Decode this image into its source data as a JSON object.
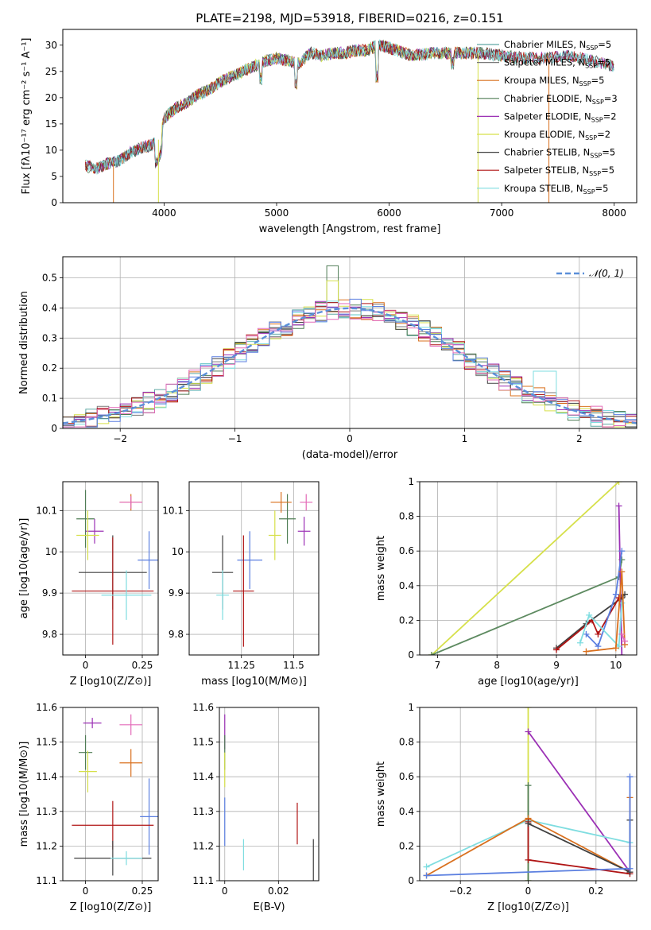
{
  "figure": {
    "title": "PLATE=2198, MJD=53918, FIBERID=0216, z=0.151"
  },
  "series_styles": [
    {
      "name": "Chabrier MILES",
      "nssp": "5",
      "color": "#5fa8a4"
    },
    {
      "name": "Salpeter MILES",
      "nssp": "5",
      "color": "#7a7a7a"
    },
    {
      "name": "Kroupa MILES",
      "nssp": "5",
      "color": "#d9701e"
    },
    {
      "name": "Chabrier ELODIE",
      "nssp": "3",
      "color": "#4f7d55"
    },
    {
      "name": "Salpeter ELODIE",
      "nssp": "2",
      "color": "#9b30b5"
    },
    {
      "name": "Kroupa ELODIE",
      "nssp": "2",
      "color": "#d6e04a"
    },
    {
      "name": "Chabrier STELIB",
      "nssp": "5",
      "color": "#404040"
    },
    {
      "name": "Salpeter STELIB",
      "nssp": "5",
      "color": "#b01414"
    },
    {
      "name": "Kroupa STELIB",
      "nssp": "5",
      "color": "#7fdde0"
    }
  ],
  "extra_colors": {
    "blue": "#5b7fe0",
    "pink": "#e36ab8",
    "orange": "#e36a2a",
    "green": "#5d8a60"
  },
  "chart_data": [
    {
      "id": "spectrum",
      "type": "line",
      "title": "PLATE=2198, MJD=53918, FIBERID=0216, z=0.151",
      "xlabel": "wavelength [Angstrom, rest frame]",
      "ylabel": "Flux [fλ10⁻¹⁷ erg cm⁻² s⁻¹ A⁻¹]",
      "xlim": [
        3100,
        8200
      ],
      "ylim": [
        0,
        33
      ],
      "xticks": [
        4000,
        5000,
        6000,
        7000,
        8000
      ],
      "yticks": [
        0,
        5,
        10,
        15,
        20,
        25,
        30
      ],
      "grid": false,
      "legend_position": "top-right",
      "continuum": {
        "x": [
          3300,
          3400,
          3500,
          3600,
          3700,
          3800,
          3900,
          3950,
          4000,
          4100,
          4200,
          4300,
          4400,
          4500,
          4600,
          4700,
          4800,
          4900,
          5000,
          5100,
          5200,
          5300,
          5400,
          5500,
          5600,
          5700,
          5800,
          5900,
          6000,
          6200,
          6400,
          6600,
          6800,
          7000,
          7200,
          7400,
          7600,
          7800,
          8000
        ],
        "y": [
          7,
          6.5,
          7.5,
          8,
          9.5,
          10.5,
          11,
          12,
          16,
          18,
          19,
          20.5,
          21.5,
          23,
          24,
          25,
          26,
          27,
          27.5,
          27,
          26.5,
          28.5,
          28,
          28.5,
          28.5,
          29,
          29,
          30,
          29.5,
          28,
          28.5,
          28.5,
          28.5,
          28,
          27.5,
          27.5,
          28,
          27,
          26
        ]
      },
      "features": [
        {
          "x": 3550,
          "y": 0,
          "series": "Kroupa MILES"
        },
        {
          "x": 3950,
          "y": 0,
          "series": "Kroupa ELODIE"
        },
        {
          "x": 6790,
          "y": 0,
          "series": "Kroupa ELODIE"
        },
        {
          "x": 7420,
          "y": 0,
          "series": "Kroupa MILES"
        }
      ]
    },
    {
      "id": "residuals",
      "type": "histogram",
      "xlabel": "(data-model)/error",
      "ylabel": "Normed distribution",
      "xlim": [
        -2.5,
        2.5
      ],
      "ylim": [
        0,
        0.57
      ],
      "xticks": [
        -2,
        -1,
        0,
        1,
        2
      ],
      "yticks": [
        0,
        0.1,
        0.2,
        0.3,
        0.4,
        0.5
      ],
      "grid": true,
      "legend_position": "top-right",
      "reference": {
        "name": "𝒩(0, 1)",
        "type": "gaussian",
        "mean": 0,
        "sigma": 1,
        "color": "#5b8fd9"
      },
      "bins": {
        "start": -2.5,
        "width": 0.1,
        "count": 50
      },
      "peaks": [
        {
          "x": -0.15,
          "y": 0.54,
          "series": "Chabrier ELODIE"
        },
        {
          "x": -0.15,
          "y": 0.49,
          "series": "Kroupa ELODIE"
        },
        {
          "x": 1.7,
          "y": 0.19,
          "series": "Kroupa STELIB"
        }
      ]
    },
    {
      "id": "age-vs-Z",
      "type": "errorbar",
      "xlabel": "Z [log10(Z/Z⊙)]",
      "ylabel": "age  [log10(age/yr)]",
      "xlim": [
        -0.1,
        0.32
      ],
      "ylim": [
        9.75,
        10.17
      ],
      "xticks": [
        0.0,
        0.25
      ],
      "yticks": [
        9.8,
        9.9,
        10.0,
        10.1
      ],
      "grid": true,
      "points": [
        {
          "series": "Chabrier ELODIE",
          "x": 0.0,
          "y": 10.08,
          "xerr": 0.04,
          "yerr": 0.07
        },
        {
          "series": "Salpeter ELODIE",
          "x": 0.04,
          "y": 10.05,
          "xerr": 0.04,
          "yerr": 0.03
        },
        {
          "series": "Kroupa ELODIE",
          "x": 0.01,
          "y": 10.04,
          "xerr": 0.05,
          "yerr": 0.06
        },
        {
          "series": "Kroupa MILES",
          "x": 0.2,
          "y": 10.12,
          "xerr": 0.05,
          "yerr": 0.02
        },
        {
          "series": "pink",
          "x": 0.2,
          "y": 10.12,
          "xerr": 0.05,
          "yerr": 0.015
        },
        {
          "series": "blue",
          "x": 0.28,
          "y": 9.98,
          "xerr": 0.05,
          "yerr": 0.07
        },
        {
          "series": "Chabrier STELIB",
          "x": 0.12,
          "y": 9.95,
          "xerr": 0.15,
          "yerr": 0.09
        },
        {
          "series": "Salpeter STELIB",
          "x": 0.12,
          "y": 9.905,
          "xerr": 0.18,
          "yerr": 0.13
        },
        {
          "series": "Kroupa STELIB",
          "x": 0.18,
          "y": 9.895,
          "xerr": 0.11,
          "yerr": 0.06
        }
      ]
    },
    {
      "id": "age-vs-mass",
      "type": "errorbar",
      "xlabel": "mass [log10(M/M⊙)]",
      "ylabel": "",
      "xlim": [
        11.0,
        11.62
      ],
      "ylim": [
        9.75,
        10.17
      ],
      "xticks": [
        11.25,
        11.5
      ],
      "yticks": [
        9.8,
        9.9,
        10.0,
        10.1
      ],
      "grid": true,
      "points": [
        {
          "series": "Chabrier ELODIE",
          "x": 11.47,
          "y": 10.08,
          "xerr": 0.04,
          "yerr": 0.06
        },
        {
          "series": "Salpeter ELODIE",
          "x": 11.55,
          "y": 10.05,
          "xerr": 0.03,
          "yerr": 0.035
        },
        {
          "series": "pink",
          "x": 11.56,
          "y": 10.12,
          "xerr": 0.03,
          "yerr": 0.02
        },
        {
          "series": "Kroupa MILES",
          "x": 11.44,
          "y": 10.12,
          "xerr": 0.05,
          "yerr": 0.025
        },
        {
          "series": "Kroupa ELODIE",
          "x": 11.41,
          "y": 10.04,
          "xerr": 0.03,
          "yerr": 0.06
        },
        {
          "series": "blue",
          "x": 11.29,
          "y": 9.98,
          "xerr": 0.06,
          "yerr": 0.07
        },
        {
          "series": "Chabrier STELIB",
          "x": 11.16,
          "y": 9.95,
          "xerr": 0.05,
          "yerr": 0.09
        },
        {
          "series": "Kroupa STELIB",
          "x": 11.16,
          "y": 9.895,
          "xerr": 0.03,
          "yerr": 0.06
        },
        {
          "series": "Salpeter STELIB",
          "x": 11.26,
          "y": 9.905,
          "xerr": 0.05,
          "yerr": 0.135
        }
      ]
    },
    {
      "id": "massweight-vs-age",
      "type": "line",
      "xlabel": "age  [log10(age/yr)]",
      "ylabel": "mass weight",
      "xlim": [
        6.7,
        10.35
      ],
      "ylim": [
        0,
        1
      ],
      "xticks": [
        7,
        8,
        9,
        10
      ],
      "yticks": [
        0.0,
        0.2,
        0.4,
        0.6,
        0.8,
        1.0
      ],
      "grid": true,
      "series": [
        {
          "name": "Kroupa ELODIE",
          "x": [
            6.9,
            10.05
          ],
          "y": [
            0.0,
            1.0
          ]
        },
        {
          "name": "green",
          "x": [
            6.9,
            10.05,
            10.1
          ],
          "y": [
            0.0,
            0.45,
            0.55
          ]
        },
        {
          "name": "Salpeter ELODIE",
          "x": [
            10.05,
            10.1
          ],
          "y": [
            0.86,
            0.0
          ]
        },
        {
          "name": "Chabrier STELIB",
          "x": [
            9.0,
            9.5,
            10.1,
            10.15
          ],
          "y": [
            0.04,
            0.18,
            0.33,
            0.35
          ]
        },
        {
          "name": "Salpeter STELIB",
          "x": [
            9.0,
            9.6,
            9.7,
            10.05
          ],
          "y": [
            0.03,
            0.2,
            0.12,
            0.33
          ]
        },
        {
          "name": "blue",
          "x": [
            9.5,
            9.7,
            10.0,
            10.1
          ],
          "y": [
            0.12,
            0.05,
            0.35,
            0.6
          ]
        },
        {
          "name": "Kroupa STELIB",
          "x": [
            9.4,
            9.55,
            10.05,
            10.1
          ],
          "y": [
            0.07,
            0.23,
            0.05,
            0.3
          ]
        },
        {
          "name": "Kroupa MILES",
          "x": [
            9.5,
            10.0,
            10.1,
            10.15
          ],
          "y": [
            0.02,
            0.04,
            0.48,
            0.06
          ]
        },
        {
          "name": "pink",
          "x": [
            10.1,
            10.15
          ],
          "y": [
            0.12,
            0.08
          ]
        }
      ]
    },
    {
      "id": "mass-vs-Z",
      "type": "errorbar",
      "xlabel": "Z [log10(Z/Z⊙)]",
      "ylabel": "mass [log10(M/M⊙)]",
      "xlim": [
        -0.1,
        0.32
      ],
      "ylim": [
        11.1,
        11.6
      ],
      "xticks": [
        0.0,
        0.25
      ],
      "yticks": [
        11.1,
        11.2,
        11.3,
        11.4,
        11.5,
        11.6
      ],
      "grid": true,
      "points": [
        {
          "series": "Salpeter ELODIE",
          "x": 0.03,
          "y": 11.555,
          "xerr": 0.04,
          "yerr": 0.015
        },
        {
          "series": "pink",
          "x": 0.2,
          "y": 11.55,
          "xerr": 0.05,
          "yerr": 0.03
        },
        {
          "series": "Chabrier ELODIE",
          "x": 0.0,
          "y": 11.47,
          "xerr": 0.03,
          "yerr": 0.05
        },
        {
          "series": "Kroupa MILES",
          "x": 0.2,
          "y": 11.44,
          "xerr": 0.05,
          "yerr": 0.04
        },
        {
          "series": "Kroupa ELODIE",
          "x": 0.01,
          "y": 11.415,
          "xerr": 0.04,
          "yerr": 0.06
        },
        {
          "series": "blue",
          "x": 0.28,
          "y": 11.285,
          "xerr": 0.04,
          "yerr": 0.11
        },
        {
          "series": "Salpeter STELIB",
          "x": 0.12,
          "y": 11.26,
          "xerr": 0.18,
          "yerr": 0.07
        },
        {
          "series": "Chabrier STELIB",
          "x": 0.12,
          "y": 11.165,
          "xerr": 0.17,
          "yerr": 0.05
        },
        {
          "series": "Kroupa STELIB",
          "x": 0.18,
          "y": 11.165,
          "xerr": 0.07,
          "yerr": 0.02
        }
      ]
    },
    {
      "id": "mass-vs-ebv",
      "type": "errorbar",
      "xlabel": "E(B-V)",
      "ylabel": "",
      "xlim": [
        -0.002,
        0.035
      ],
      "ylim": [
        11.1,
        11.6
      ],
      "xticks": [
        0.0,
        0.02
      ],
      "yticks": [
        11.1,
        11.2,
        11.3,
        11.4,
        11.5,
        11.6
      ],
      "grid": true,
      "points": [
        {
          "series": "Salpeter ELODIE",
          "x": 0.0,
          "y": 11.53,
          "xerr": 0.0,
          "yerr": 0.05
        },
        {
          "series": "Chabrier ELODIE",
          "x": 0.0,
          "y": 11.47,
          "xerr": 0.0,
          "yerr": 0.05
        },
        {
          "series": "Kroupa ELODIE",
          "x": 0.0,
          "y": 11.42,
          "xerr": 0.0,
          "yerr": 0.05
        },
        {
          "series": "blue",
          "x": 0.0,
          "y": 11.27,
          "xerr": 0.0,
          "yerr": 0.07
        },
        {
          "series": "Kroupa STELIB",
          "x": 0.007,
          "y": 11.175,
          "xerr": 0.0,
          "yerr": 0.045
        },
        {
          "series": "Salpeter STELIB",
          "x": 0.027,
          "y": 11.265,
          "xerr": 0.0,
          "yerr": 0.06
        },
        {
          "series": "Chabrier STELIB",
          "x": 0.033,
          "y": 11.14,
          "xerr": 0.0,
          "yerr": 0.08
        }
      ]
    },
    {
      "id": "massweight-vs-Z",
      "type": "line",
      "xlabel": "Z [log10(Z/Z⊙)]",
      "ylabel": "mass weight",
      "xlim": [
        -0.32,
        0.32
      ],
      "ylim": [
        0,
        1
      ],
      "xticks": [
        -0.2,
        0.0,
        0.2
      ],
      "yticks": [
        0.0,
        0.2,
        0.4,
        0.6,
        0.8,
        1.0
      ],
      "grid": true,
      "series": [
        {
          "name": "Kroupa ELODIE",
          "x": [
            0.0,
            0.0
          ],
          "y": [
            1.0,
            0.0
          ]
        },
        {
          "name": "Chabrier ELODIE",
          "x": [
            0.0,
            0.0
          ],
          "y": [
            0.55,
            0.0
          ]
        },
        {
          "name": "Salpeter ELODIE",
          "x": [
            0.0,
            0.3
          ],
          "y": [
            0.86,
            0.05
          ]
        },
        {
          "name": "Kroupa STELIB",
          "x": [
            -0.3,
            0.0,
            0.3
          ],
          "y": [
            0.08,
            0.35,
            0.22
          ]
        },
        {
          "name": "Kroupa MILES",
          "x": [
            -0.3,
            0.0,
            0.3,
            0.3
          ],
          "y": [
            0.03,
            0.36,
            0.05,
            0.48
          ]
        },
        {
          "name": "Salpeter STELIB",
          "x": [
            0.0,
            0.0,
            0.3
          ],
          "y": [
            0.34,
            0.12,
            0.04
          ]
        },
        {
          "name": "Chabrier STELIB",
          "x": [
            0.0,
            0.3,
            0.3
          ],
          "y": [
            0.33,
            0.05,
            0.35
          ]
        },
        {
          "name": "blue",
          "x": [
            -0.3,
            0.3,
            0.3
          ],
          "y": [
            0.03,
            0.07,
            0.6
          ]
        }
      ]
    }
  ]
}
